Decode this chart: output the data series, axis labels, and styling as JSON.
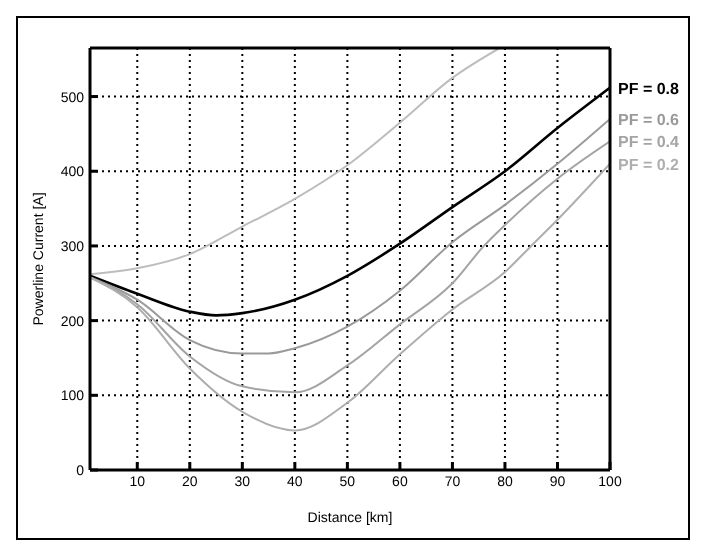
{
  "chart_data": {
    "type": "line",
    "xlabel": "Distance [km]",
    "ylabel": "Powerline Current [A]",
    "xlim": [
      1,
      100
    ],
    "ylim": [
      0,
      565
    ],
    "xticks": [
      10,
      20,
      30,
      40,
      50,
      60,
      70,
      80,
      90,
      100
    ],
    "yticks": [
      0,
      100,
      200,
      300,
      400,
      500
    ],
    "grid": true,
    "legend": false,
    "marker": "none",
    "line_style": "solid",
    "series": [
      {
        "color": "#bdbdbd",
        "x": [
          1,
          10,
          20,
          30,
          40,
          50,
          60,
          70,
          79
        ],
        "values": [
          262,
          270,
          289,
          326,
          363,
          408,
          465,
          525,
          565
        ]
      },
      {
        "name": "PF = 0.8",
        "color": "#000000",
        "x": [
          1,
          10,
          20,
          25,
          30,
          40,
          50,
          60,
          70,
          80,
          90,
          100
        ],
        "values": [
          260,
          236,
          212,
          207,
          210,
          228,
          260,
          303,
          352,
          400,
          458,
          512
        ]
      },
      {
        "name": "PF = 0.6",
        "color": "#9a9a9a",
        "x": [
          1,
          10,
          20,
          30,
          35,
          40,
          50,
          60,
          70,
          80,
          90,
          100
        ],
        "values": [
          258,
          228,
          174,
          156,
          156,
          163,
          192,
          240,
          305,
          355,
          410,
          470
        ]
      },
      {
        "name": "PF = 0.4",
        "color": "#a4a4a4",
        "x": [
          1,
          10,
          20,
          30,
          40,
          50,
          60,
          70,
          76,
          80,
          90,
          100
        ],
        "values": [
          258,
          222,
          152,
          112,
          104,
          140,
          195,
          250,
          300,
          328,
          390,
          440
        ]
      },
      {
        "name": "PF = 0.2",
        "color": "#aeaeae",
        "x": [
          1,
          10,
          20,
          30,
          40,
          50,
          60,
          70,
          80,
          85,
          90,
          100
        ],
        "values": [
          258,
          218,
          136,
          78,
          53,
          90,
          155,
          215,
          265,
          300,
          335,
          410
        ]
      }
    ]
  }
}
